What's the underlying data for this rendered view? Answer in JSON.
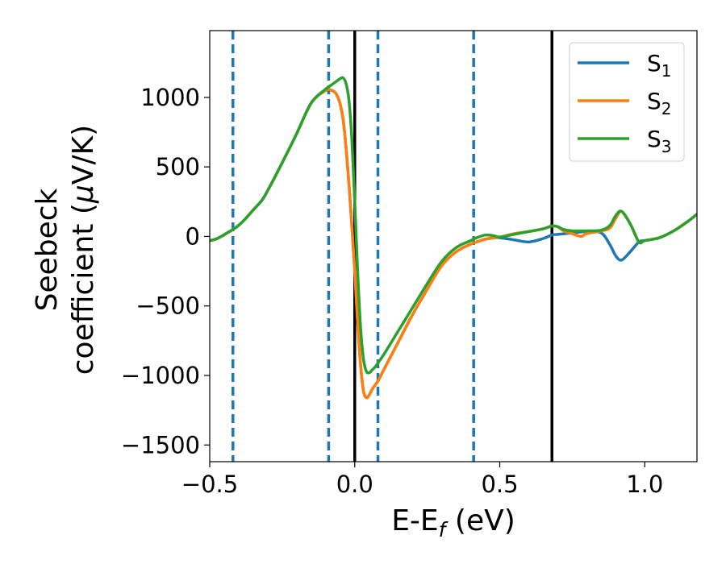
{
  "chart_data": {
    "type": "line",
    "xlabel": "E-E",
    "xlabel_sub": "f",
    "xlabel_unit": " (eV)",
    "ylabel_line1": "Seebeck",
    "ylabel_line2": "coefficient  (",
    "ylabel_mu": "μ",
    "ylabel_unit": "V/K)",
    "xlim": [
      -0.5,
      1.18
    ],
    "ylim": [
      -1620,
      1480
    ],
    "xticks": [
      -0.5,
      0.0,
      0.5,
      1.0
    ],
    "xtick_labels": [
      "−0.5",
      "0.0",
      "0.5",
      "1.0"
    ],
    "yticks": [
      -1500,
      -1000,
      -500,
      0,
      500,
      1000
    ],
    "ytick_labels": [
      "−1500",
      "−1000",
      "−500",
      "0",
      "500",
      "1000"
    ],
    "grid": false,
    "legend_position": "top-right",
    "vlines_solid": [
      0.0,
      0.68
    ],
    "vlines_dashed": [
      -0.42,
      -0.09,
      0.08,
      0.41
    ],
    "series": [
      {
        "name": "S",
        "sub": "1",
        "color": "#1f77b4",
        "x": [
          -0.5,
          -0.48,
          -0.46,
          -0.44,
          -0.42,
          -0.4,
          -0.38,
          -0.35,
          -0.32,
          -0.3,
          -0.25,
          -0.2,
          -0.15,
          -0.1,
          -0.08,
          -0.07,
          -0.06,
          -0.05,
          -0.04,
          -0.03,
          -0.02,
          -0.01,
          0.0,
          0.01,
          0.02,
          0.03,
          0.04,
          0.05,
          0.06,
          0.07,
          0.08,
          0.1,
          0.15,
          0.2,
          0.25,
          0.3,
          0.35,
          0.4,
          0.42,
          0.45,
          0.48,
          0.5,
          0.55,
          0.6,
          0.65,
          0.68,
          0.7,
          0.75,
          0.8,
          0.85,
          0.88,
          0.9,
          0.92,
          0.95,
          0.98,
          1.0,
          1.05,
          1.1,
          1.15,
          1.18
        ],
        "y": [
          -30,
          -20,
          0,
          25,
          50,
          80,
          120,
          190,
          260,
          330,
          530,
          740,
          960,
          1050,
          1050,
          1040,
          1010,
          950,
          840,
          640,
          380,
          80,
          -250,
          -620,
          -920,
          -1110,
          -1160,
          -1140,
          -1100,
          -1070,
          -1040,
          -960,
          -760,
          -560,
          -380,
          -210,
          -110,
          -55,
          -40,
          -20,
          -10,
          -10,
          -25,
          -40,
          -15,
          10,
          15,
          25,
          35,
          25,
          -60,
          -140,
          -170,
          -110,
          -40,
          -30,
          -10,
          40,
          110,
          160
        ]
      },
      {
        "name": "S",
        "sub": "2",
        "color": "#ff7f0e",
        "x": [
          -0.5,
          -0.48,
          -0.46,
          -0.44,
          -0.42,
          -0.4,
          -0.38,
          -0.35,
          -0.32,
          -0.3,
          -0.25,
          -0.2,
          -0.15,
          -0.1,
          -0.08,
          -0.07,
          -0.06,
          -0.05,
          -0.04,
          -0.03,
          -0.02,
          -0.01,
          0.0,
          0.01,
          0.02,
          0.03,
          0.04,
          0.05,
          0.06,
          0.07,
          0.08,
          0.1,
          0.15,
          0.2,
          0.25,
          0.3,
          0.35,
          0.4,
          0.42,
          0.45,
          0.48,
          0.5,
          0.55,
          0.6,
          0.65,
          0.68,
          0.7,
          0.72,
          0.75,
          0.78,
          0.8,
          0.85,
          0.88,
          0.9,
          0.92,
          0.95,
          0.98,
          1.0,
          1.05,
          1.1,
          1.15,
          1.18
        ],
        "y": [
          -30,
          -20,
          0,
          25,
          50,
          80,
          120,
          190,
          260,
          330,
          530,
          740,
          960,
          1050,
          1050,
          1040,
          1010,
          950,
          840,
          640,
          380,
          80,
          -250,
          -620,
          -920,
          -1110,
          -1160,
          -1140,
          -1100,
          -1070,
          -1040,
          -960,
          -760,
          -560,
          -380,
          -210,
          -110,
          -55,
          -40,
          -20,
          -10,
          -5,
          20,
          35,
          55,
          75,
          70,
          40,
          20,
          0,
          20,
          40,
          60,
          130,
          180,
          90,
          -40,
          -30,
          -10,
          40,
          110,
          160
        ]
      },
      {
        "name": "S",
        "sub": "3",
        "color": "#2ca02c",
        "x": [
          -0.5,
          -0.48,
          -0.46,
          -0.44,
          -0.42,
          -0.4,
          -0.38,
          -0.35,
          -0.32,
          -0.3,
          -0.25,
          -0.2,
          -0.15,
          -0.1,
          -0.08,
          -0.06,
          -0.05,
          -0.04,
          -0.03,
          -0.02,
          -0.01,
          0.0,
          0.01,
          0.02,
          0.03,
          0.04,
          0.05,
          0.06,
          0.07,
          0.08,
          0.1,
          0.15,
          0.2,
          0.25,
          0.3,
          0.35,
          0.4,
          0.42,
          0.45,
          0.48,
          0.5,
          0.55,
          0.6,
          0.65,
          0.68,
          0.7,
          0.72,
          0.75,
          0.78,
          0.8,
          0.85,
          0.88,
          0.9,
          0.92,
          0.95,
          0.98,
          1.0,
          1.05,
          1.1,
          1.15,
          1.18
        ],
        "y": [
          -30,
          -20,
          0,
          25,
          50,
          80,
          120,
          190,
          260,
          330,
          530,
          740,
          960,
          1060,
          1090,
          1120,
          1135,
          1140,
          1100,
          980,
          700,
          250,
          -250,
          -650,
          -880,
          -970,
          -980,
          -960,
          -940,
          -910,
          -850,
          -680,
          -510,
          -340,
          -180,
          -80,
          -30,
          -10,
          10,
          5,
          -5,
          15,
          35,
          55,
          75,
          70,
          50,
          40,
          40,
          40,
          45,
          80,
          150,
          180,
          90,
          -40,
          -30,
          -10,
          40,
          110,
          160
        ]
      }
    ]
  }
}
